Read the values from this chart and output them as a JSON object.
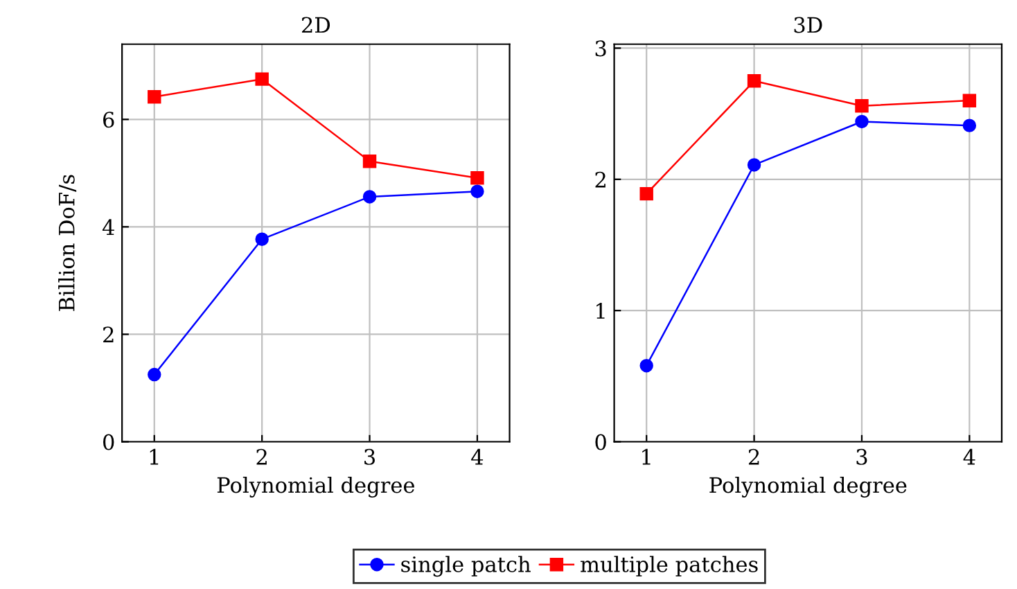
{
  "chart_data": [
    {
      "type": "line",
      "title": "2D",
      "xlabel": "Polynomial degree",
      "ylabel": "Billion DoF/s",
      "x": [
        1,
        2,
        3,
        4
      ],
      "xlim": [
        0.7,
        4.3
      ],
      "xticks": [
        1,
        2,
        3,
        4
      ],
      "ylim": [
        0,
        7.4
      ],
      "yticks": [
        0,
        2,
        4,
        6
      ],
      "grid": true,
      "legend": "bottom",
      "series": [
        {
          "name": "single patch",
          "color": "#0000ff",
          "marker": "circle",
          "values": [
            1.25,
            3.77,
            4.56,
            4.66
          ]
        },
        {
          "name": "multiple patches",
          "color": "#ff0000",
          "marker": "square",
          "values": [
            6.42,
            6.75,
            5.22,
            4.91
          ]
        }
      ]
    },
    {
      "type": "line",
      "title": "3D",
      "xlabel": "Polynomial degree",
      "x": [
        1,
        2,
        3,
        4
      ],
      "xlim": [
        0.7,
        4.3
      ],
      "xticks": [
        1,
        2,
        3,
        4
      ],
      "ylim": [
        0,
        3.03
      ],
      "yticks": [
        0,
        1,
        2,
        3
      ],
      "grid": true,
      "series": [
        {
          "color": "#0000ff",
          "marker": "circle",
          "values": [
            0.58,
            2.11,
            2.44,
            2.41
          ]
        },
        {
          "color": "#ff0000",
          "marker": "square",
          "values": [
            1.89,
            2.75,
            2.56,
            2.6
          ]
        }
      ]
    }
  ]
}
